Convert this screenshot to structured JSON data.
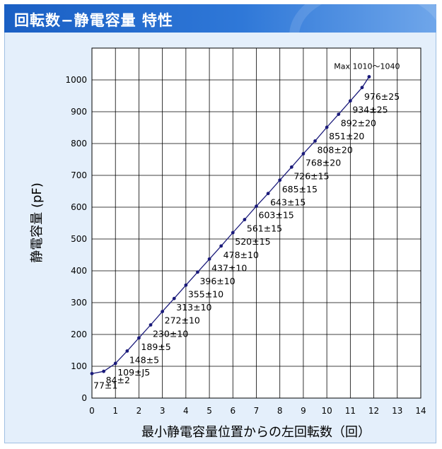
{
  "title": "回転数−静電容量 特性",
  "chart_data": {
    "type": "line",
    "xlabel": "最小静電容量位置からの左回転数（回）",
    "ylabel": "静電容量 (pF)",
    "xlim": [
      0,
      14
    ],
    "ylim": [
      0,
      1100
    ],
    "x_ticks": [
      "0",
      "1",
      "2",
      "3",
      "4",
      "5",
      "6",
      "7",
      "8",
      "9",
      "10",
      "11",
      "12",
      "13",
      "14"
    ],
    "y_ticks": [
      "0",
      "100",
      "200",
      "300",
      "400",
      "500",
      "600",
      "700",
      "800",
      "900",
      "1000"
    ],
    "grid": true,
    "line_color": "#1a1a7a",
    "x": [
      0,
      0.5,
      1,
      1.5,
      2,
      2.5,
      3,
      3.5,
      4,
      4.5,
      5,
      5.5,
      6,
      6.5,
      7,
      7.5,
      8,
      8.5,
      9,
      9.5,
      10,
      10.5,
      11,
      11.5,
      11.8
    ],
    "values": [
      77,
      84,
      109,
      148,
      189,
      230,
      272,
      313,
      355,
      396,
      437,
      478,
      520,
      561,
      603,
      643,
      685,
      726,
      768,
      808,
      851,
      892,
      934,
      976,
      1010
    ],
    "labels": [
      "77±1",
      "84±2",
      "109±J5",
      "148±5",
      "189±5",
      "230±10",
      "272±10",
      "313±10",
      "355±10",
      "396±10",
      "437±10",
      "478±10",
      "520±15",
      "561±15",
      "603±15",
      "643±15",
      "685±15",
      "726±15",
      "768±20",
      "808±20",
      "851±20",
      "892±20",
      "934±25",
      "976±25",
      "Max 1010～1040"
    ]
  }
}
